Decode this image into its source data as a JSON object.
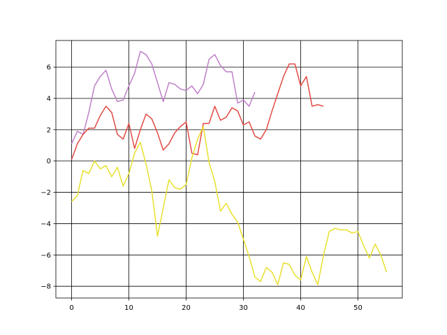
{
  "chart_data": {
    "type": "line",
    "title": "",
    "xlabel": "",
    "ylabel": "",
    "xlim": [
      -2.75,
      57.75
    ],
    "ylim": [
      -8.75,
      7.7
    ],
    "grid": true,
    "grid_color": "#000000",
    "xticks": [
      0,
      10,
      20,
      30,
      40,
      50
    ],
    "yticks": [
      -8,
      -6,
      -4,
      -2,
      0,
      2,
      4,
      6
    ],
    "xtick_labels": [
      "0",
      "10",
      "20",
      "30",
      "40",
      "50"
    ],
    "ytick_labels": [
      "−8",
      "−6",
      "−4",
      "−2",
      "0",
      "2",
      "4",
      "6"
    ],
    "series": [
      {
        "color": "#bf7fc9",
        "x": [
          0,
          1,
          2,
          3,
          4,
          5,
          6,
          7,
          8,
          9,
          10,
          11,
          12,
          13,
          14,
          15,
          16,
          17,
          18,
          19,
          20,
          21,
          22,
          23,
          24,
          25,
          26,
          27,
          28,
          29,
          30,
          31,
          32
        ],
        "values": [
          1.1,
          1.9,
          1.7,
          3.1,
          4.8,
          5.4,
          5.8,
          4.6,
          3.8,
          3.9,
          4.8,
          5.6,
          7.0,
          6.8,
          6.2,
          5.0,
          3.8,
          5.0,
          4.9,
          4.6,
          4.5,
          4.8,
          4.3,
          4.9,
          6.5,
          6.8,
          6.1,
          5.7,
          5.7,
          3.7,
          3.9,
          3.5,
          4.4
        ]
      },
      {
        "color": "#e24a45",
        "x": [
          0,
          1,
          2,
          3,
          4,
          5,
          6,
          7,
          8,
          9,
          10,
          11,
          12,
          13,
          14,
          15,
          16,
          17,
          18,
          19,
          20,
          21,
          22,
          23,
          24,
          25,
          26,
          27,
          28,
          29,
          30,
          31,
          32,
          33,
          34,
          35,
          36,
          37,
          38,
          39,
          40,
          41,
          42,
          43,
          44
        ],
        "values": [
          0.1,
          1.1,
          1.7,
          2.1,
          2.1,
          2.9,
          3.5,
          3.1,
          1.7,
          1.4,
          2.4,
          0.8,
          2.0,
          3.0,
          2.7,
          1.8,
          0.7,
          1.1,
          1.8,
          2.2,
          2.5,
          0.5,
          0.4,
          2.4,
          2.4,
          3.5,
          2.6,
          2.8,
          3.4,
          3.2,
          2.3,
          2.5,
          1.6,
          1.4,
          2.0,
          3.2,
          4.3,
          5.4,
          6.2,
          6.2,
          4.8,
          5.4,
          3.5,
          3.6,
          3.5
        ]
      },
      {
        "color": "#e8e02c",
        "x": [
          0,
          1,
          2,
          3,
          4,
          5,
          6,
          7,
          8,
          9,
          10,
          11,
          12,
          13,
          14,
          15,
          16,
          17,
          18,
          19,
          20,
          21,
          22,
          23,
          24,
          25,
          26,
          27,
          28,
          29,
          30,
          31,
          32,
          33,
          34,
          35,
          36,
          37,
          38,
          39,
          40,
          41,
          42,
          43,
          44,
          45,
          46,
          47,
          48,
          49,
          50,
          51,
          52,
          53,
          54,
          55
        ],
        "values": [
          -2.6,
          -2.2,
          -0.6,
          -0.8,
          0.0,
          -0.5,
          -0.3,
          -1.0,
          -0.4,
          -1.6,
          -0.8,
          0.5,
          1.2,
          -0.2,
          -1.9,
          -4.8,
          -3.0,
          -1.2,
          -1.7,
          -1.8,
          -1.5,
          0.2,
          1.4,
          2.2,
          -0.1,
          -1.3,
          -3.2,
          -2.7,
          -3.4,
          -3.9,
          -5.0,
          -6.1,
          -7.4,
          -7.7,
          -6.8,
          -7.1,
          -7.9,
          -6.5,
          -6.6,
          -7.3,
          -7.6,
          -6.1,
          -7.1,
          -7.9,
          -6.0,
          -4.5,
          -4.3,
          -4.4,
          -4.4,
          -4.6,
          -4.5,
          -5.4,
          -6.2,
          -5.3,
          -6.0,
          -7.1
        ]
      }
    ]
  }
}
